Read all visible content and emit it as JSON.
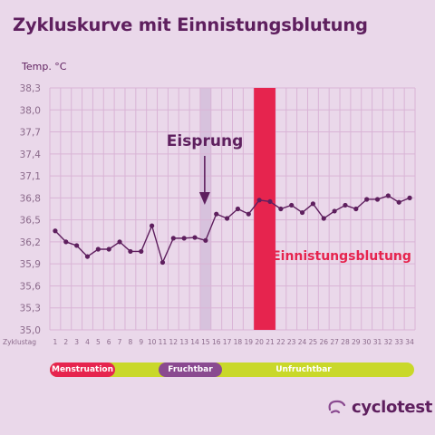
{
  "title": "Zykluskurve mit Einnistungsblutung",
  "colors": {
    "background": "#ead8ea",
    "grid": "#d9b4d6",
    "line": "#5e1f5e",
    "ovulation_band": "#d7c2dd",
    "implantation_band": "#e6244e",
    "text_purple": "#5e1f5e",
    "tick_text": "#8b6a8b"
  },
  "chart_data": {
    "type": "line",
    "title": "Zykluskurve mit Einnistungsblutung",
    "ylabel": "Temp. °C",
    "xlabel": "Zyklustag",
    "ylim": [
      35.0,
      38.3
    ],
    "yticks": [
      "38,3",
      "38,0",
      "37,7",
      "37,4",
      "37,1",
      "36,8",
      "36,5",
      "36,2",
      "35,9",
      "35,6",
      "35,3",
      "35,0"
    ],
    "ytick_values": [
      38.3,
      38.0,
      37.7,
      37.4,
      37.1,
      36.8,
      36.5,
      36.2,
      35.9,
      35.6,
      35.3,
      35.0
    ],
    "x": [
      1,
      2,
      3,
      4,
      5,
      6,
      7,
      8,
      9,
      10,
      11,
      12,
      13,
      14,
      15,
      16,
      17,
      18,
      19,
      20,
      21,
      22,
      23,
      24,
      25,
      26,
      27,
      28,
      29,
      30,
      31,
      32,
      33,
      34
    ],
    "xticks": [
      "1",
      "2",
      "3",
      "4",
      "5",
      "6",
      "7",
      "8",
      "9",
      "10",
      "11",
      "12",
      "13",
      "14",
      "15",
      "16",
      "17",
      "18",
      "19",
      "20",
      "21",
      "22",
      "23",
      "24",
      "25",
      "26",
      "27",
      "28",
      "29",
      "30",
      "31",
      "32",
      "33",
      "34"
    ],
    "series": [
      {
        "values": [
          36.35,
          36.2,
          36.15,
          36.0,
          36.1,
          36.1,
          36.2,
          36.07,
          36.07,
          36.42,
          35.92,
          36.25,
          36.25,
          36.26,
          36.22,
          36.58,
          36.52,
          36.65,
          36.58,
          36.77,
          36.75,
          36.65,
          36.7,
          36.6,
          36.72,
          36.52,
          36.62,
          36.7,
          36.65,
          36.78,
          36.78,
          36.83,
          36.74,
          36.8
        ]
      }
    ],
    "grid": true,
    "annotations": [
      {
        "text": "Eisprung",
        "day": 15
      },
      {
        "text": "Einnistungsblutung",
        "days": [
          20,
          21
        ]
      }
    ],
    "phases": [
      {
        "label": "Menstruation"
      },
      {
        "label": "Fruchtbar"
      },
      {
        "label": "Unfruchtbar"
      }
    ]
  },
  "brand": "cyclotest"
}
